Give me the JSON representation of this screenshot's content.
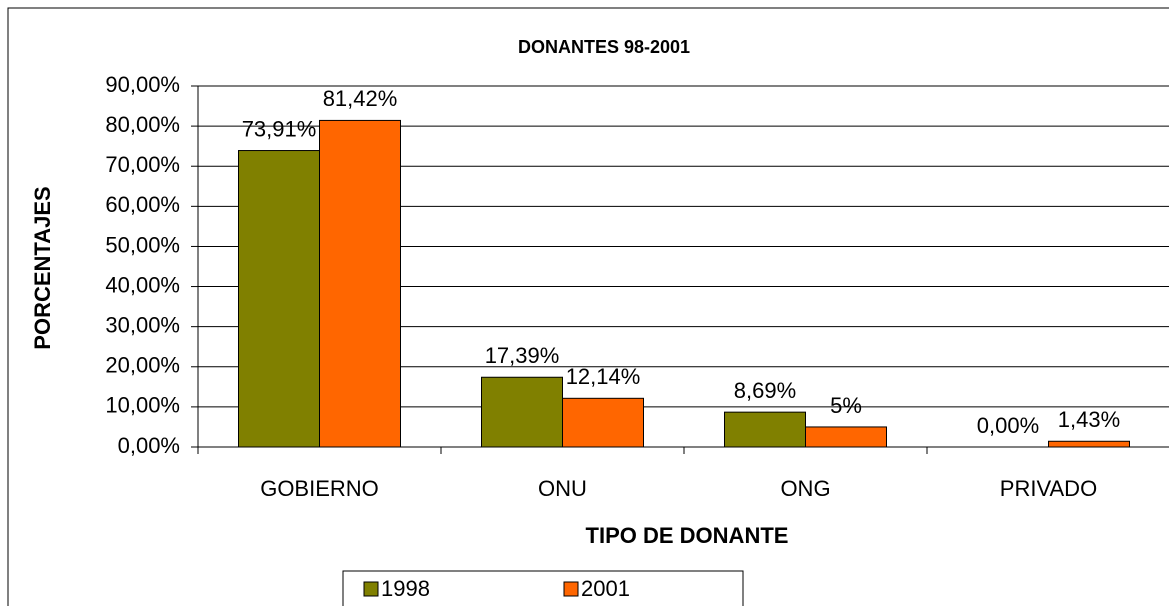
{
  "chart_data": {
    "type": "bar",
    "title": "DONANTES 98-2001",
    "x_label": "TIPO DE DONANTE",
    "y_label": "PORCENTAJES",
    "categories": [
      "GOBIERNO",
      "ONU",
      "ONG",
      "PRIVADO"
    ],
    "series": [
      {
        "name": "1998",
        "color": "#808000",
        "values": [
          73.91,
          17.39,
          8.69,
          0
        ],
        "value_labels": [
          "73,91%",
          "17,39%",
          "8,69%",
          "0,00%"
        ]
      },
      {
        "name": "2001",
        "color": "#ff6600",
        "values": [
          81.42,
          12.14,
          5,
          1.43
        ],
        "value_labels": [
          "81,42%",
          "12,14%",
          "5%",
          "1,43%"
        ]
      }
    ],
    "ylim": [
      0,
      90
    ],
    "yticks": [
      {
        "value": 0,
        "label": "0,00%"
      },
      {
        "value": 10,
        "label": "10,00%"
      },
      {
        "value": 20,
        "label": "20,00%"
      },
      {
        "value": 30,
        "label": "30,00%"
      },
      {
        "value": 40,
        "label": "40,00%"
      },
      {
        "value": 50,
        "label": "50,00%"
      },
      {
        "value": 60,
        "label": "60,00%"
      },
      {
        "value": 70,
        "label": "70,00%"
      },
      {
        "value": 80,
        "label": "80,00%"
      },
      {
        "value": 90,
        "label": "90,00%"
      }
    ],
    "grid": true,
    "legend": "bottom"
  }
}
